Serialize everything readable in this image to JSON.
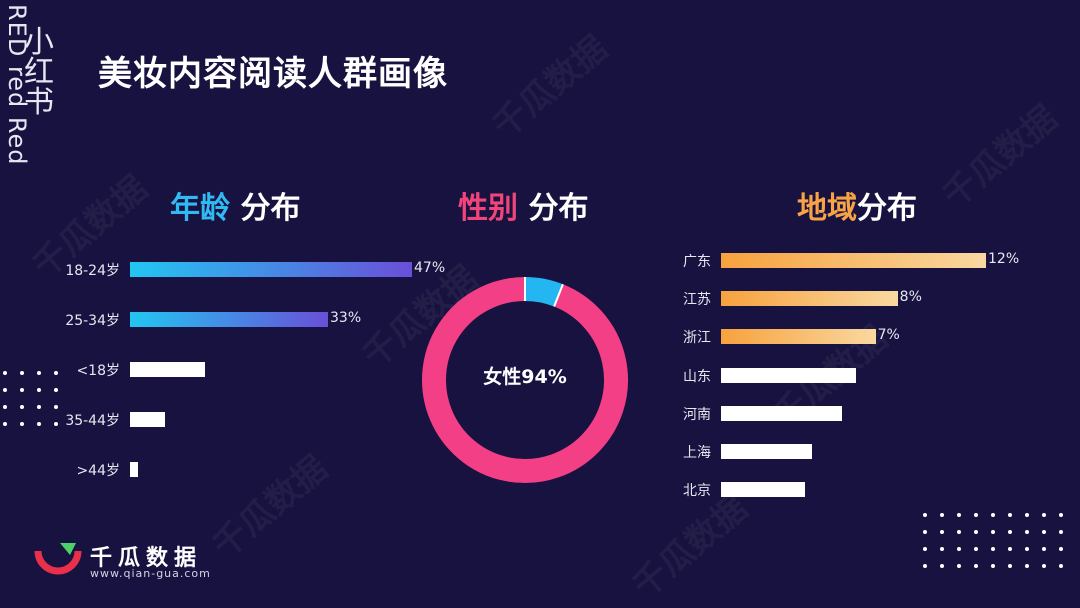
{
  "brand": {
    "vertical_en": "RED red Red",
    "vertical_cn": "小红书"
  },
  "title": "美妆内容阅读人群画像",
  "sections": {
    "age": {
      "accent": "年龄",
      "rest": "分布"
    },
    "gender": {
      "accent": "性别",
      "rest": "分布"
    },
    "region": {
      "accent": "地域",
      "rest": "分布"
    }
  },
  "colors": {
    "background": "#17123f",
    "age_gradient_start": "#22c6f2",
    "age_gradient_end": "#6a4fd8",
    "female": "#f23f85",
    "male": "#23b6f0",
    "region_gradient_start": "#f7a23e",
    "region_gradient_end": "#f9d8a0",
    "unlabeled_bar": "#ffffff"
  },
  "chart_data": [
    {
      "type": "bar",
      "orientation": "horizontal",
      "categories": [
        "18-24岁",
        "25-34岁",
        "<18岁",
        "35-44岁",
        ">44岁"
      ],
      "values": [
        47,
        33,
        12.5,
        5.9,
        1.4
      ],
      "data_labels": [
        "47%",
        "33%",
        "",
        "",
        ""
      ],
      "xlim": [
        0,
        47
      ]
    },
    {
      "type": "pie",
      "donut": true,
      "categories": [
        "女性",
        "男性"
      ],
      "values": [
        94,
        6
      ],
      "center_label": "女性94%"
    },
    {
      "type": "bar",
      "orientation": "horizontal",
      "categories": [
        "广东",
        "江苏",
        "浙江",
        "山东",
        "河南",
        "上海",
        "北京"
      ],
      "values": [
        12,
        8,
        7,
        6.1,
        5.5,
        4.1,
        3.8
      ],
      "data_labels": [
        "12%",
        "8%",
        "7%",
        "",
        "",
        "",
        ""
      ],
      "xlim": [
        0,
        12
      ]
    }
  ],
  "logo": {
    "name": "千瓜数据",
    "url": "www.qian-gua.com"
  },
  "watermark": "千瓜数据"
}
